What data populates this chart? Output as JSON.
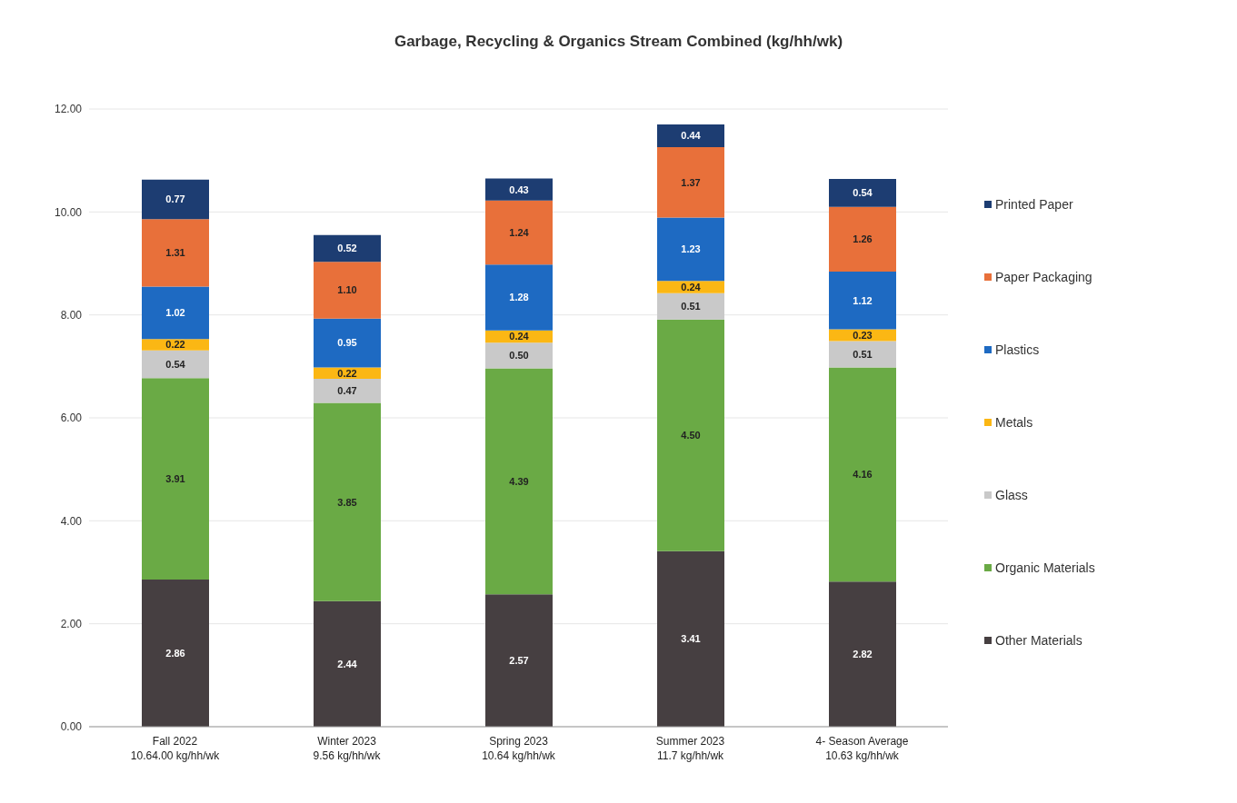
{
  "chart_data": {
    "type": "bar",
    "stacked": true,
    "title": "Garbage, Recycling & Organics Stream Combined (kg/hh/wk)",
    "categories": [
      "Fall 2022\n10.64.00 kg/hh/wk",
      "Winter 2023\n9.56 kg/hh/wk",
      "Spring 2023\n10.64 kg/hh/wk",
      "Summer 2023\n11.7 kg/hh/wk",
      "4- Season Average\n10.63 kg/hh/wk"
    ],
    "series": [
      {
        "name": "Other Materials",
        "color": "#463f41",
        "values": [
          2.86,
          2.44,
          2.57,
          3.41,
          2.82
        ],
        "value_labels": [
          "2.86",
          "2.44",
          "2.57",
          "3.41",
          "2.82"
        ]
      },
      {
        "name": "Organic Materials",
        "color": "#6aaa45",
        "values": [
          3.91,
          3.85,
          4.39,
          4.5,
          4.16
        ],
        "value_labels": [
          "3.91",
          "3.85",
          "4.39",
          "4.50",
          "4.16"
        ]
      },
      {
        "name": "Glass",
        "color": "#c9c9c9",
        "values": [
          0.54,
          0.47,
          0.5,
          0.51,
          0.51
        ],
        "value_labels": [
          "0.54",
          "0.47",
          "0.50",
          "0.51",
          "0.51"
        ]
      },
      {
        "name": "Metals",
        "color": "#fbb714",
        "values": [
          0.22,
          0.22,
          0.24,
          0.24,
          0.23
        ],
        "value_labels": [
          "0.22",
          "0.22",
          "0.24",
          "0.24",
          "0.23"
        ]
      },
      {
        "name": "Plastics",
        "color": "#1e6ac2",
        "values": [
          1.02,
          0.95,
          1.28,
          1.23,
          1.12
        ],
        "value_labels": [
          "1.02",
          "0.95",
          "1.28",
          "1.23",
          "1.12"
        ]
      },
      {
        "name": "Paper Packaging",
        "color": "#e8703a",
        "values": [
          1.31,
          1.1,
          1.24,
          1.37,
          1.26
        ],
        "value_labels": [
          "1.31",
          "1.10",
          "1.24",
          "1.37",
          "1.26"
        ]
      },
      {
        "name": "Printed Paper",
        "color": "#1d3d72",
        "values": [
          0.77,
          0.52,
          0.43,
          0.44,
          0.54
        ],
        "value_labels": [
          "0.77",
          "0.52",
          "0.43",
          "0.44",
          "0.54"
        ]
      }
    ],
    "ylim": [
      0,
      12
    ],
    "yticks": [
      {
        "value": 0,
        "label": "0.00"
      },
      {
        "value": 2,
        "label": "2.00"
      },
      {
        "value": 4,
        "label": "4.00"
      },
      {
        "value": 6,
        "label": "6.00"
      },
      {
        "value": 8,
        "label": "8.00"
      },
      {
        "value": 10,
        "label": "10.00"
      },
      {
        "value": 12,
        "label": "12.00"
      }
    ],
    "grid": "y",
    "legend": "right"
  }
}
